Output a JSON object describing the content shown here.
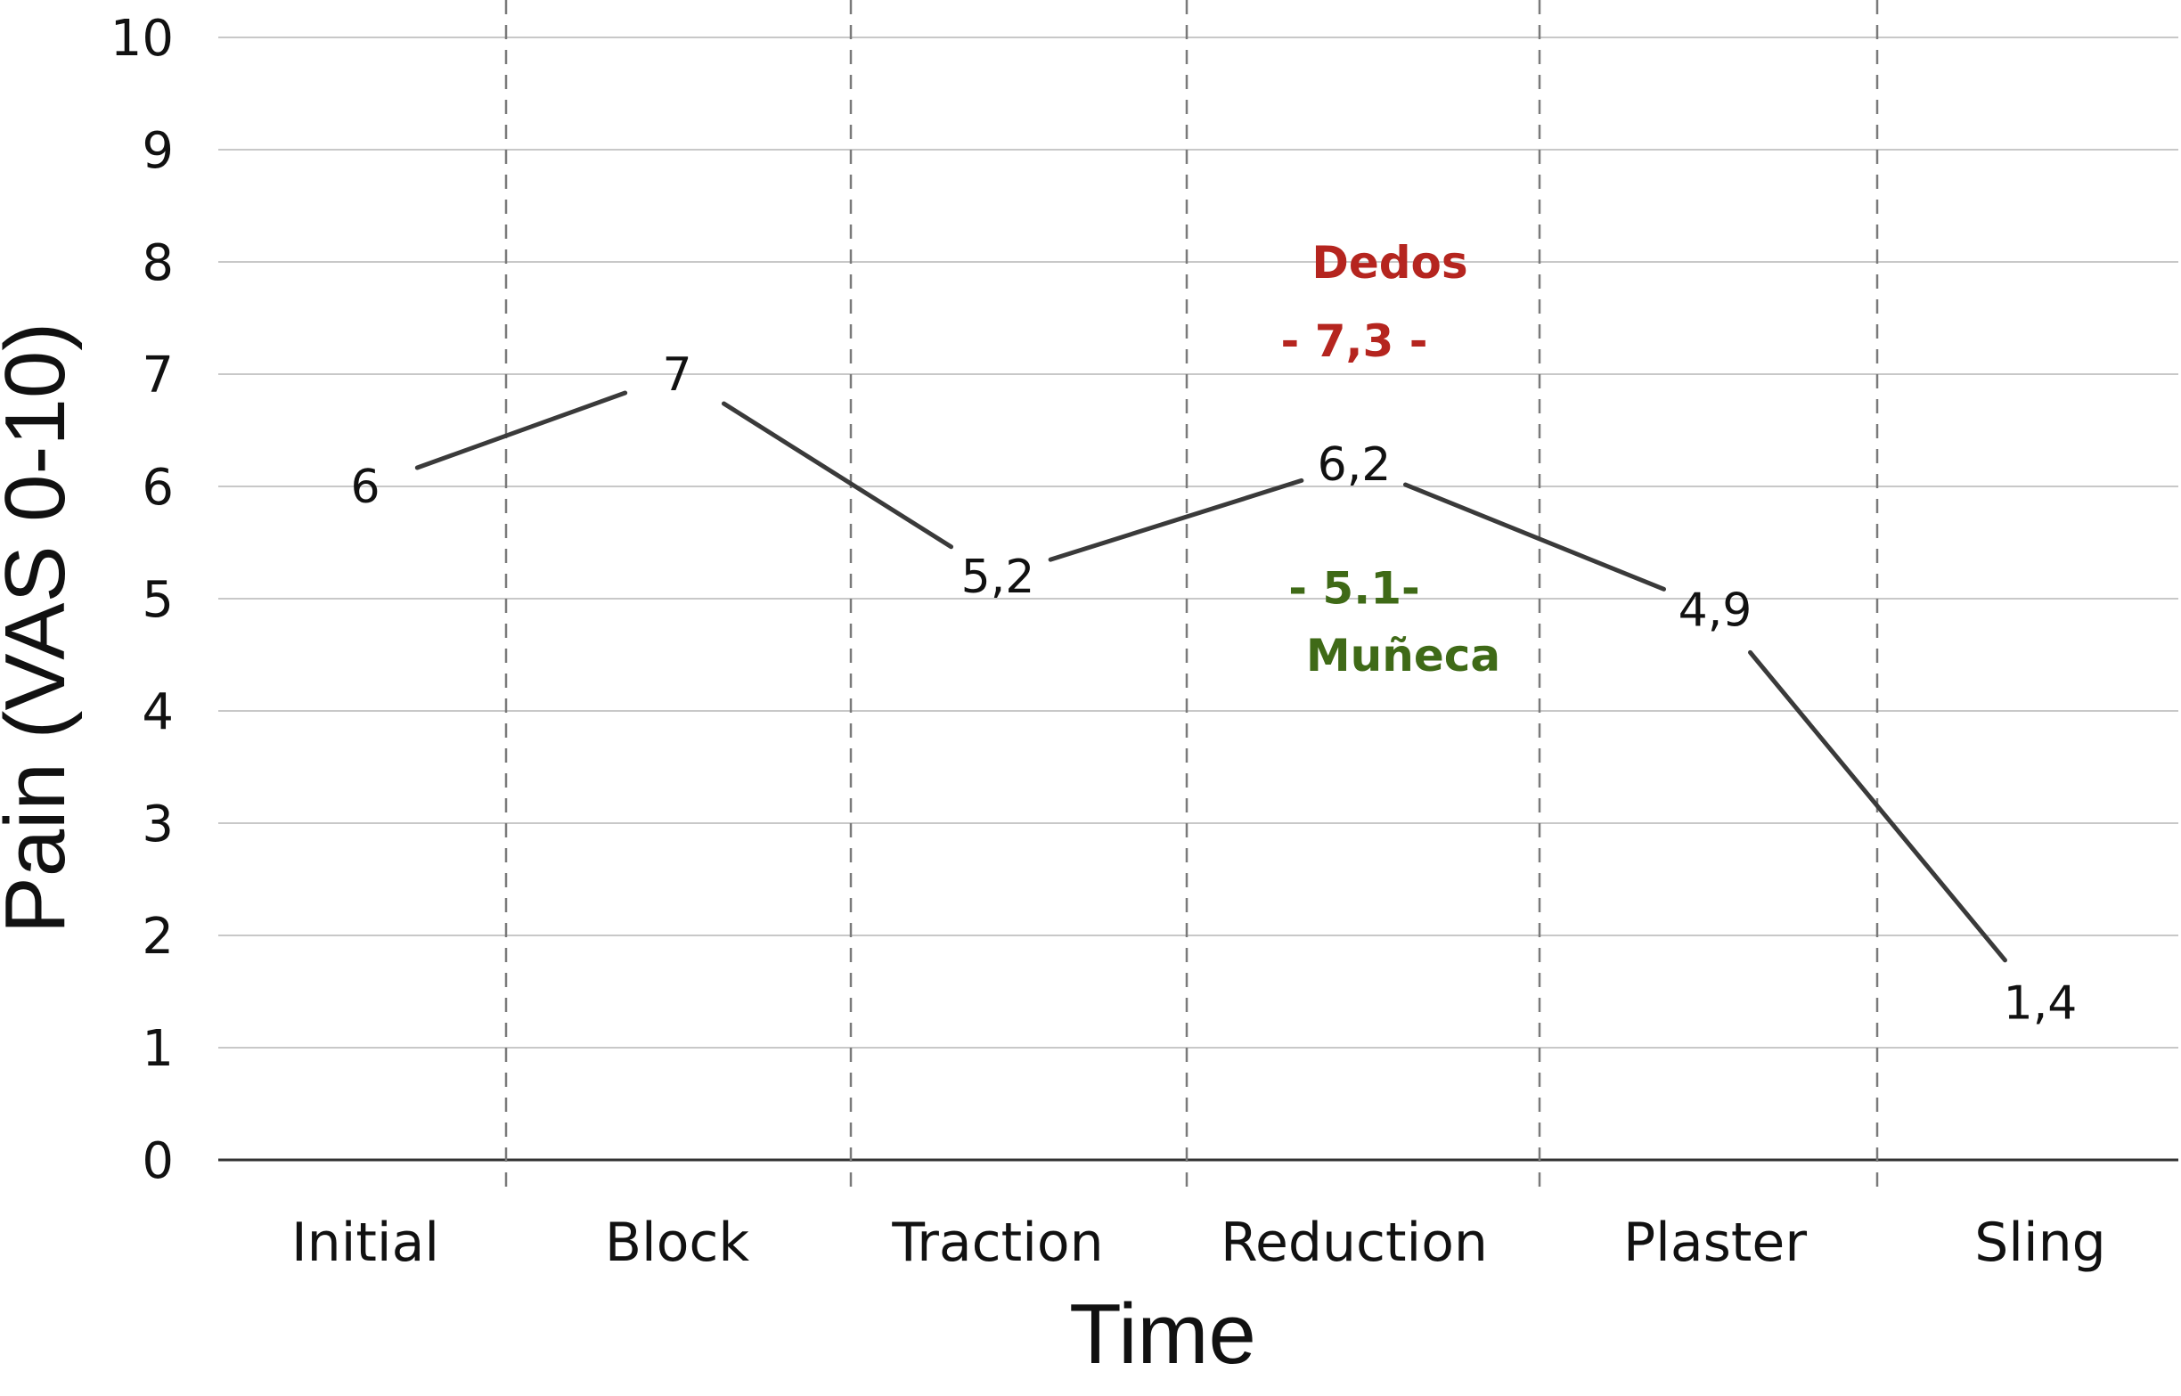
{
  "chart_data": {
    "type": "line",
    "categories": [
      "Initial",
      "Block",
      "Traction",
      "Reduction",
      "Plaster",
      "Sling"
    ],
    "series": [
      {
        "values": [
          6,
          7,
          5.2,
          6.2,
          4.9,
          1.4
        ]
      }
    ],
    "data_labels": [
      "6",
      "7",
      "5,2",
      "6,2",
      "4,9",
      "1,4"
    ],
    "xlabel": "Time",
    "ylabel": "Pain (VAS 0-10)",
    "ylim": [
      0,
      10
    ],
    "yticks": [
      "0",
      "1",
      "2",
      "3",
      "4",
      "5",
      "6",
      "7",
      "8",
      "9",
      "10"
    ],
    "grid": "horizontal",
    "category_separators": "dashed",
    "annotations": [
      {
        "text": "Dedos",
        "color": "#b5251f",
        "category": "Reduction",
        "y": 8.0
      },
      {
        "text": "- 7,3 -",
        "color": "#b5251f",
        "category": "Reduction",
        "y": 7.3
      },
      {
        "text": "- 5.1-",
        "color": "#3f6a17",
        "category": "Reduction",
        "y": 5.1
      },
      {
        "text": "Muñeca",
        "color": "#3f6a17",
        "category": "Reduction",
        "y": 4.5
      }
    ],
    "colors": {
      "line": "#3a3a3a",
      "grid": "#c8c8c8",
      "axis": "#333333",
      "separator": "#7a7a7a"
    }
  }
}
